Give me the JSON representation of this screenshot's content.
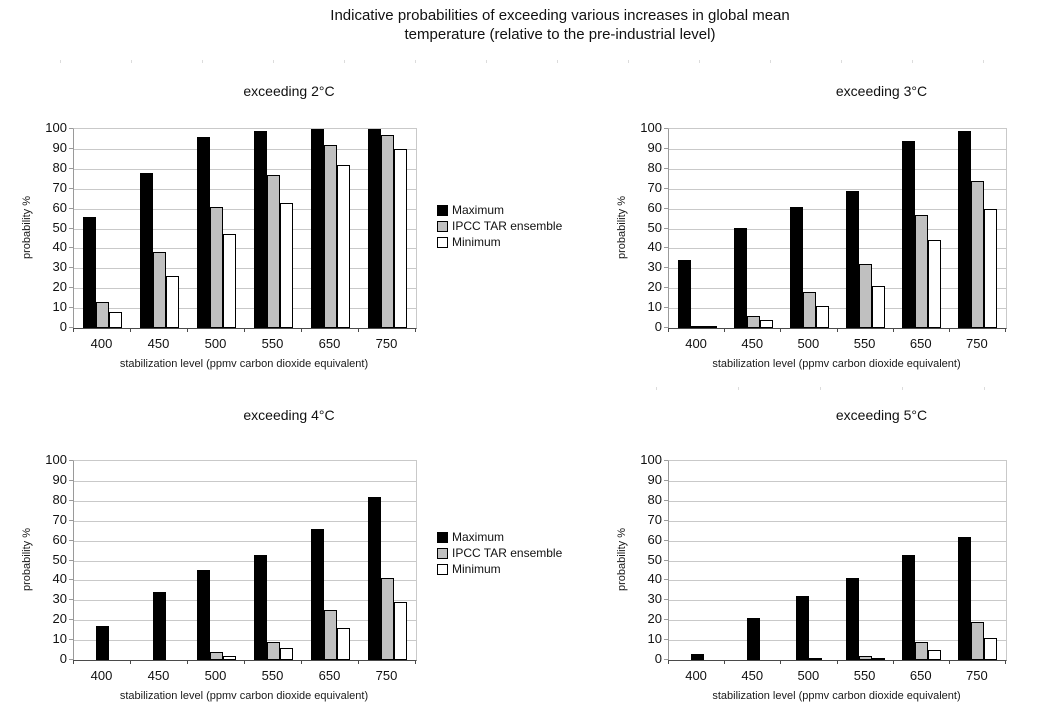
{
  "figure": {
    "title_line1": "Indicative probabilities of exceeding various increases in global mean",
    "title_line2": "temperature (relative to the pre-industrial level)"
  },
  "colors": {
    "maximum": "#000000",
    "ipcc_tar_ensemble": "#c0c0c0",
    "minimum": "#ffffff",
    "gridline": "#c9c9c9",
    "background": "#ffffff"
  },
  "chart_data": [
    {
      "type": "bar",
      "title": "exceeding 2°C",
      "xlabel": "stabilization level (ppmv carbon dioxide equivalent)",
      "ylabel": "probability %",
      "ylim": [
        0,
        100
      ],
      "ytick_step": 10,
      "grid": true,
      "legend_visible": true,
      "legend_position": "right",
      "categories": [
        "400",
        "450",
        "500",
        "550",
        "650",
        "750"
      ],
      "series": [
        {
          "name": "Maximum",
          "color": "#000000",
          "values": [
            56,
            78,
            96,
            99,
            100,
            100
          ]
        },
        {
          "name": "IPCC TAR ensemble",
          "color": "#c0c0c0",
          "values": [
            13,
            38,
            61,
            77,
            92,
            97
          ]
        },
        {
          "name": "Minimum",
          "color": "#ffffff",
          "values": [
            8,
            26,
            47,
            63,
            82,
            90
          ]
        }
      ]
    },
    {
      "type": "bar",
      "title": "exceeding 3°C",
      "xlabel": "stabilization level (ppmv carbon dioxide equivalent)",
      "ylabel": "probability %",
      "ylim": [
        0,
        100
      ],
      "ytick_step": 10,
      "grid": true,
      "legend_visible": false,
      "legend_position": "none",
      "categories": [
        "400",
        "450",
        "500",
        "550",
        "650",
        "750"
      ],
      "series": [
        {
          "name": "Maximum",
          "color": "#000000",
          "values": [
            34,
            50,
            61,
            69,
            94,
            99
          ]
        },
        {
          "name": "IPCC TAR ensemble",
          "color": "#c0c0c0",
          "values": [
            1,
            6,
            18,
            32,
            57,
            74
          ]
        },
        {
          "name": "Minimum",
          "color": "#ffffff",
          "values": [
            1,
            4,
            11,
            21,
            44,
            60
          ]
        }
      ]
    },
    {
      "type": "bar",
      "title": "exceeding 4°C",
      "xlabel": "stabilization level (ppmv carbon dioxide equivalent)",
      "ylabel": "probability %",
      "ylim": [
        0,
        100
      ],
      "ytick_step": 10,
      "grid": true,
      "legend_visible": true,
      "legend_position": "right",
      "categories": [
        "400",
        "450",
        "500",
        "550",
        "650",
        "750"
      ],
      "series": [
        {
          "name": "Maximum",
          "color": "#000000",
          "values": [
            17,
            34,
            45,
            53,
            66,
            82
          ]
        },
        {
          "name": "IPCC TAR ensemble",
          "color": "#c0c0c0",
          "values": [
            0,
            0,
            4,
            9,
            25,
            41
          ]
        },
        {
          "name": "Minimum",
          "color": "#ffffff",
          "values": [
            0,
            0,
            2,
            6,
            16,
            29
          ]
        }
      ]
    },
    {
      "type": "bar",
      "title": "exceeding 5°C",
      "xlabel": "stabilization level (ppmv carbon dioxide equivalent)",
      "ylabel": "probability %",
      "ylim": [
        0,
        100
      ],
      "ytick_step": 10,
      "grid": true,
      "legend_visible": false,
      "legend_position": "none",
      "categories": [
        "400",
        "450",
        "500",
        "550",
        "650",
        "750"
      ],
      "series": [
        {
          "name": "Maximum",
          "color": "#000000",
          "values": [
            3,
            21,
            32,
            41,
            53,
            62
          ]
        },
        {
          "name": "IPCC TAR ensemble",
          "color": "#c0c0c0",
          "values": [
            0,
            0,
            1,
            2,
            9,
            19
          ]
        },
        {
          "name": "Minimum",
          "color": "#ffffff",
          "values": [
            0,
            0,
            0,
            1,
            5,
            11
          ]
        }
      ]
    }
  ]
}
